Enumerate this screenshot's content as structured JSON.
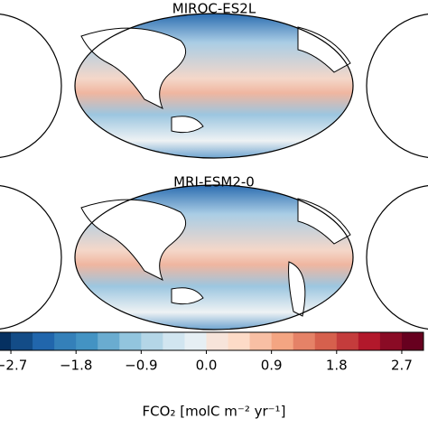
{
  "panels": [
    {
      "title": "MIROC-ES2L"
    },
    {
      "title": "MRI-ESM2-0"
    }
  ],
  "colorbar": {
    "label": "FCO₂ [molC m⁻² yr⁻¹]",
    "lim": [
      -3.0,
      3.0
    ],
    "ticks": [
      {
        "value": -2.7,
        "label": "−2.7"
      },
      {
        "value": -1.8,
        "label": "−1.8"
      },
      {
        "value": -0.9,
        "label": "−0.9"
      },
      {
        "value": 0,
        "label": "0.0"
      },
      0.9,
      1.8,
      2.7
    ],
    "colors": [
      "#053061",
      "#134c87",
      "#2166ac",
      "#3480b9",
      "#4393c3",
      "#6aacd0",
      "#92c5de",
      "#b4d6e7",
      "#d1e5f0",
      "#e6eff4",
      "#f7e4da",
      "#fddbc7",
      "#f8bfa4",
      "#f4a582",
      "#e58267",
      "#d6604d",
      "#c43c3c",
      "#b2182b",
      "#8a0b25",
      "#67001f"
    ]
  }
}
